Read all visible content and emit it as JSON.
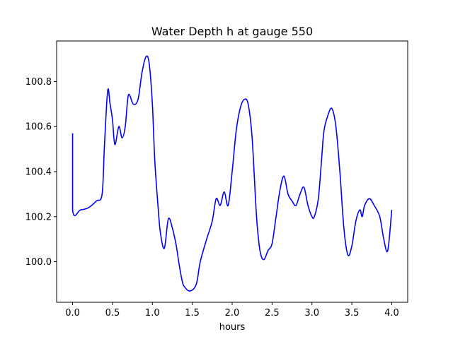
{
  "chart_data": {
    "type": "line",
    "title": "Water Depth h at gauge 550",
    "xlabel": "hours",
    "ylabel": "",
    "xlim": [
      -0.2,
      4.2
    ],
    "ylim": [
      99.82,
      100.98
    ],
    "xticks": [
      0.0,
      0.5,
      1.0,
      1.5,
      2.0,
      2.5,
      3.0,
      3.5,
      4.0
    ],
    "xtick_labels": [
      "0.0",
      "0.5",
      "1.0",
      "1.5",
      "2.0",
      "2.5",
      "3.0",
      "3.5",
      "4.0"
    ],
    "yticks": [
      100.0,
      100.2,
      100.4,
      100.6,
      100.8
    ],
    "ytick_labels": [
      "100.0",
      "100.2",
      "100.4",
      "100.6",
      "100.8"
    ],
    "grid": false,
    "line_color": "#0000ff",
    "series": [
      {
        "x": [
          0.0,
          0.0,
          0.1,
          0.2,
          0.3,
          0.37,
          0.4,
          0.44,
          0.47,
          0.5,
          0.53,
          0.58,
          0.62,
          0.66,
          0.7,
          0.76,
          0.82,
          0.87,
          0.92,
          0.96,
          1.0,
          1.03,
          1.07,
          1.1,
          1.15,
          1.2,
          1.25,
          1.3,
          1.33,
          1.37,
          1.4,
          1.47,
          1.55,
          1.6,
          1.68,
          1.75,
          1.8,
          1.85,
          1.9,
          1.95,
          2.0,
          2.05,
          2.1,
          2.15,
          2.2,
          2.25,
          2.3,
          2.33,
          2.36,
          2.4,
          2.45,
          2.5,
          2.55,
          2.6,
          2.65,
          2.7,
          2.75,
          2.8,
          2.85,
          2.9,
          2.95,
          3.0,
          3.03,
          3.08,
          3.12,
          3.15,
          3.2,
          3.25,
          3.3,
          3.35,
          3.4,
          3.45,
          3.5,
          3.55,
          3.6,
          3.63,
          3.66,
          3.72,
          3.78,
          3.85,
          3.9,
          3.95,
          4.0
        ],
        "y": [
          100.57,
          100.23,
          100.23,
          100.24,
          100.27,
          100.3,
          100.52,
          100.76,
          100.7,
          100.63,
          100.52,
          100.6,
          100.55,
          100.6,
          100.74,
          100.7,
          100.72,
          100.84,
          100.91,
          100.88,
          100.7,
          100.45,
          100.25,
          100.13,
          100.06,
          100.19,
          100.15,
          100.07,
          100.0,
          99.92,
          99.89,
          99.87,
          99.9,
          100.0,
          100.1,
          100.18,
          100.28,
          100.25,
          100.31,
          100.25,
          100.4,
          100.58,
          100.68,
          100.72,
          100.7,
          100.55,
          100.23,
          100.1,
          100.03,
          100.01,
          100.05,
          100.08,
          100.2,
          100.32,
          100.38,
          100.3,
          100.27,
          100.25,
          100.3,
          100.33,
          100.25,
          100.2,
          100.2,
          100.28,
          100.45,
          100.58,
          100.65,
          100.68,
          100.6,
          100.4,
          100.15,
          100.03,
          100.07,
          100.18,
          100.23,
          100.2,
          100.25,
          100.28,
          100.25,
          100.2,
          100.1,
          100.05,
          100.23
        ]
      }
    ]
  }
}
